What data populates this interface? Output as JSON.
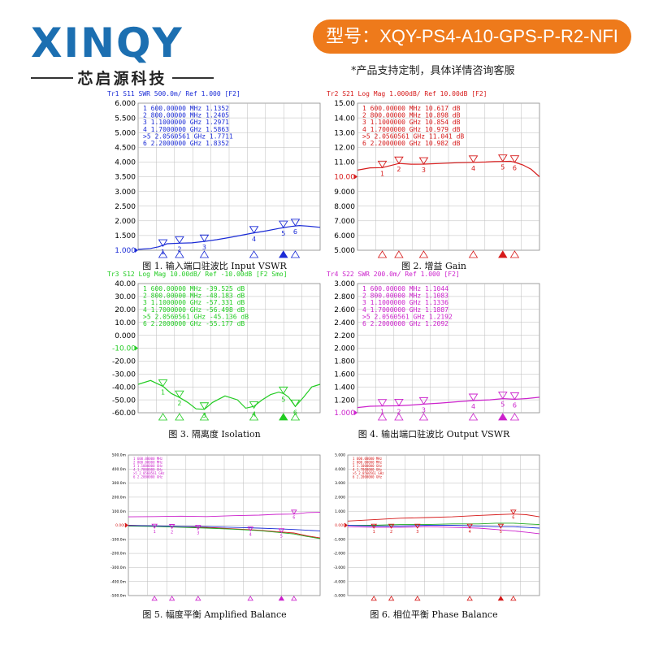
{
  "header": {
    "logo_text": "XINQY",
    "logo_sub": "芯启源科技",
    "model_label": "型号：XQY-PS4-A10-GPS-P-R2-NFI",
    "note": "*产品支持定制，具体详情咨询客服"
  },
  "chart_data": [
    {
      "type": "line",
      "title": "Tr1  S11  SWR 500.0m/ Ref 1.000 [F2]",
      "caption": "图 1. 输入端口驻波比 Input VSWR",
      "color": "#1a2bd6",
      "title_color": "#1a2bd6",
      "ylim": [
        1.0,
        6.0
      ],
      "yticks": [
        "6.000",
        "5.500",
        "5.000",
        "4.500",
        "4.000",
        "3.500",
        "3.000",
        "2.500",
        "2.000",
        "1.500",
        "1.000"
      ],
      "ref_value": 1.0,
      "xlim": [
        0.3,
        2.5
      ],
      "x": [
        0.3,
        0.45,
        0.55,
        0.65,
        0.8,
        0.95,
        1.1,
        1.25,
        1.4,
        1.55,
        1.7,
        1.85,
        2.0,
        2.06,
        2.15,
        2.25,
        2.35,
        2.5
      ],
      "y": [
        1.03,
        1.06,
        1.12,
        1.22,
        1.24,
        1.25,
        1.3,
        1.36,
        1.43,
        1.51,
        1.59,
        1.66,
        1.74,
        1.77,
        1.81,
        1.84,
        1.82,
        1.78
      ],
      "markers": [
        {
          "label": "1",
          "x": 0.6,
          "y": 1.1352
        },
        {
          "label": "2",
          "x": 0.8,
          "y": 1.2405
        },
        {
          "label": "3",
          "x": 1.1,
          "y": 1.2971
        },
        {
          "label": "4",
          "x": 1.7,
          "y": 1.5863
        },
        {
          "label": "5",
          "x": 2.0560561,
          "y": 1.7711
        },
        {
          "label": "6",
          "x": 2.2,
          "y": 1.8352
        }
      ],
      "marker_table": [
        "1   600.00000 MHz   1.1352",
        "2   800.00000 MHz   1.2405",
        "3   1.1000000 GHz   1.2971",
        "4   1.7000000 GHz   1.5863",
        ">5  2.0560561 GHz   1.7711",
        "6   2.2000000 GHz   1.8352"
      ]
    },
    {
      "type": "line",
      "title": "Tr2  S21  Log Mag 1.000dB/ Ref 10.00dB [F2]",
      "caption": "图 2. 增益 Gain",
      "color": "#d61a1a",
      "title_color": "#d61a1a",
      "ylim": [
        5.0,
        15.0
      ],
      "yticks": [
        "15.00",
        "14.00",
        "13.00",
        "12.00",
        "11.00",
        "10.00",
        "9.000",
        "8.000",
        "7.000",
        "6.000",
        "5.000"
      ],
      "ref_value": 10.0,
      "xlim": [
        0.3,
        2.5
      ],
      "x": [
        0.3,
        0.45,
        0.6,
        0.8,
        0.95,
        1.1,
        1.3,
        1.5,
        1.7,
        1.85,
        1.95,
        2.06,
        2.15,
        2.2,
        2.3,
        2.4,
        2.5
      ],
      "y": [
        10.45,
        10.6,
        10.617,
        10.898,
        10.85,
        10.854,
        10.9,
        10.95,
        10.979,
        11.0,
        11.03,
        11.041,
        11.05,
        10.982,
        10.8,
        10.5,
        10.0
      ],
      "markers": [
        {
          "label": "1",
          "x": 0.6,
          "y": 10.617
        },
        {
          "label": "2",
          "x": 0.8,
          "y": 10.898
        },
        {
          "label": "3",
          "x": 1.1,
          "y": 10.854
        },
        {
          "label": "4",
          "x": 1.7,
          "y": 10.979
        },
        {
          "label": "5",
          "x": 2.0560561,
          "y": 11.041
        },
        {
          "label": "6",
          "x": 2.2,
          "y": 10.982
        }
      ],
      "marker_table": [
        "1   600.00000 MHz   10.617 dB",
        "2   800.00000 MHz   10.898 dB",
        "3   1.1000000 GHz   10.854 dB",
        "4   1.7000000 GHz   10.979 dB",
        ">5  2.0560561 GHz   11.041 dB",
        "6   2.2000000 GHz   10.982 dB"
      ]
    },
    {
      "type": "line",
      "title": "Tr3  S12  Log Mag 10.00dB/ Ref -10.00dB [F2 Smo]",
      "caption": "图 3. 隔离度 Isolation",
      "color": "#22cc22",
      "title_color": "#22cc22",
      "ylim": [
        -60.0,
        40.0
      ],
      "yticks": [
        "40.00",
        "30.00",
        "20.00",
        "10.00",
        "0.000",
        "-10.00",
        "-20.00",
        "-30.00",
        "-40.00",
        "-50.00",
        "-60.00"
      ],
      "ref_value": -10.0,
      "xlim": [
        0.3,
        2.5
      ],
      "x": [
        0.3,
        0.45,
        0.6,
        0.7,
        0.8,
        0.9,
        1.0,
        1.1,
        1.2,
        1.35,
        1.5,
        1.6,
        1.7,
        1.8,
        1.9,
        2.0,
        2.06,
        2.12,
        2.2,
        2.3,
        2.4,
        2.5
      ],
      "y": [
        -38,
        -35,
        -39.525,
        -45,
        -48.183,
        -52,
        -57,
        -57.331,
        -52,
        -47,
        -50,
        -56.498,
        -55,
        -50,
        -46,
        -44,
        -45.136,
        -48,
        -55.177,
        -48,
        -40,
        -38
      ],
      "markers": [
        {
          "label": "1",
          "x": 0.6,
          "y": -39.525
        },
        {
          "label": "2",
          "x": 0.8,
          "y": -48.183
        },
        {
          "label": "3",
          "x": 1.1,
          "y": -57.331
        },
        {
          "label": "4",
          "x": 1.7,
          "y": -56.498
        },
        {
          "label": "5",
          "x": 2.0560561,
          "y": -45.136
        },
        {
          "label": "6",
          "x": 2.2,
          "y": -55.177
        }
      ],
      "marker_table": [
        "1   600.00000 MHz   -39.525 dB",
        "2   800.00000 MHz   -48.183 dB",
        "3   1.1000000 GHz   -57.331 dB",
        "4   1.7000000 GHz   -56.498 dB",
        ">5  2.0560561 GHz   -45.136 dB",
        "6   2.2000000 GHz   -55.177 dB"
      ]
    },
    {
      "type": "line",
      "title": "Tr4  S22  SWR 200.0m/ Ref 1.000 [F2]",
      "caption": "图 4. 输出端口驻波比 Output VSWR",
      "color": "#cc22cc",
      "title_color": "#cc22cc",
      "ylim": [
        1.0,
        3.0
      ],
      "yticks": [
        "3.000",
        "2.800",
        "2.600",
        "2.400",
        "2.200",
        "2.000",
        "1.800",
        "1.600",
        "1.400",
        "1.200",
        "1.000"
      ],
      "ref_value": 1.0,
      "xlim": [
        0.3,
        2.5
      ],
      "x": [
        0.3,
        0.45,
        0.6,
        0.8,
        0.95,
        1.1,
        1.3,
        1.5,
        1.7,
        1.9,
        2.06,
        2.2,
        2.35,
        2.5
      ],
      "y": [
        1.08,
        1.1,
        1.1044,
        1.1083,
        1.12,
        1.1336,
        1.15,
        1.17,
        1.1887,
        1.2,
        1.2192,
        1.2092,
        1.22,
        1.24
      ],
      "markers": [
        {
          "label": "1",
          "x": 0.6,
          "y": 1.1044
        },
        {
          "label": "2",
          "x": 0.8,
          "y": 1.1083
        },
        {
          "label": "3",
          "x": 1.1,
          "y": 1.1336
        },
        {
          "label": "4",
          "x": 1.7,
          "y": 1.1887
        },
        {
          "label": "5",
          "x": 2.0560561,
          "y": 1.2192
        },
        {
          "label": "6",
          "x": 2.2,
          "y": 1.2092
        }
      ],
      "marker_table": [
        "1   600.00000 MHz   1.1044",
        "2   800.00000 MHz   1.1083",
        "3   1.1000000 GHz   1.1336",
        "4   1.7000000 GHz   1.1887",
        ">5  2.0560561 GHz   1.2192",
        "6   2.2000000 GHz   1.2092"
      ]
    },
    {
      "type": "line",
      "title": "",
      "caption": "图 5. 幅度平衡 Amplified Balance",
      "title_color": "#d61a1a",
      "ylim": [
        -500,
        500
      ],
      "yticks": [
        "500.0m",
        "400.0m",
        "300.0m",
        "200.0m",
        "100.0m",
        "0.000",
        "-100.0m",
        "-200.0m",
        "-300.0m",
        "-400.0m",
        "-500.0m"
      ],
      "ref_value": 0,
      "xlim": [
        0.3,
        2.5
      ],
      "x": [
        0.3,
        0.6,
        0.9,
        1.2,
        1.5,
        1.8,
        2.0,
        2.2,
        2.35,
        2.5
      ],
      "series": [
        {
          "name": "",
          "color": "#cc22cc",
          "values": [
            60,
            62,
            65,
            62,
            68,
            72,
            78,
            80,
            90,
            92
          ]
        },
        {
          "name": "",
          "color": "#d61a1a",
          "values": [
            0,
            -5,
            -10,
            -15,
            -25,
            -35,
            -45,
            -55,
            -75,
            -90
          ]
        },
        {
          "name": "",
          "color": "#22aa22",
          "values": [
            -5,
            -8,
            -14,
            -20,
            -28,
            -38,
            -50,
            -62,
            -80,
            -95
          ]
        },
        {
          "name": "",
          "color": "#1a2bd6",
          "values": [
            -2,
            -4,
            -8,
            -10,
            -15,
            -20,
            -25,
            -30,
            -35,
            -40
          ]
        }
      ],
      "markers": [
        {
          "label": "1",
          "x": 0.6,
          "y": -20
        },
        {
          "label": "2",
          "x": 0.8,
          "y": -22
        },
        {
          "label": "3",
          "x": 1.1,
          "y": -28
        },
        {
          "label": "4",
          "x": 1.7,
          "y": -40
        },
        {
          "label": "5",
          "x": 2.0560561,
          "y": -52
        },
        {
          "label": "6",
          "x": 2.2,
          "y": 80
        }
      ],
      "marker_table": [
        "1   600.00000 MHz",
        "2   800.00000 MHz",
        "3   1.1000000 GHz",
        "4   1.7000000 GHz",
        ">5  2.0560561 GHz",
        "6   2.2000000 GHz"
      ]
    },
    {
      "type": "line",
      "title": "",
      "caption": "图 6. 相位平衡 Phase Balance",
      "title_color": "#d61a1a",
      "ylim": [
        -5.0,
        5.0
      ],
      "yticks": [
        "5.000",
        "4.000",
        "3.000",
        "2.000",
        "1.000",
        "0.000",
        "-1.000",
        "-2.000",
        "-3.000",
        "-4.000",
        "-5.000"
      ],
      "ref_value": 0,
      "xlim": [
        0.3,
        2.5
      ],
      "x": [
        0.3,
        0.6,
        0.9,
        1.2,
        1.5,
        1.8,
        2.0,
        2.2,
        2.35,
        2.5
      ],
      "series": [
        {
          "name": "",
          "color": "#d61a1a",
          "values": [
            0.3,
            0.4,
            0.5,
            0.55,
            0.6,
            0.7,
            0.75,
            0.8,
            0.75,
            0.6
          ]
        },
        {
          "name": "",
          "color": "#22aa22",
          "values": [
            0,
            0,
            0.05,
            0.05,
            0.1,
            0.1,
            0.15,
            0.15,
            0.1,
            0.05
          ]
        },
        {
          "name": "",
          "color": "#1a2bd6",
          "values": [
            0,
            -0.05,
            -0.05,
            0,
            0,
            -0.05,
            -0.1,
            -0.1,
            -0.15,
            -0.2
          ]
        },
        {
          "name": "",
          "color": "#cc22cc",
          "values": [
            -0.1,
            -0.15,
            -0.15,
            -0.1,
            -0.15,
            -0.2,
            -0.3,
            -0.4,
            -0.5,
            -0.6
          ]
        }
      ],
      "markers": [
        {
          "label": "1",
          "x": 0.6,
          "y": -0.2
        },
        {
          "label": "2",
          "x": 0.8,
          "y": -0.2
        },
        {
          "label": "3",
          "x": 1.1,
          "y": -0.2
        },
        {
          "label": "4",
          "x": 1.7,
          "y": -0.2
        },
        {
          "label": "5",
          "x": 2.0560561,
          "y": -0.2
        },
        {
          "label": "6",
          "x": 2.2,
          "y": 0.8
        }
      ],
      "marker_table": [
        "1   600.00000 MHz",
        "2   800.00000 MHz",
        "3   1.1000000 GHz",
        "4   1.7000000 GHz",
        ">5  2.0560561 GHz",
        "6   2.2000000 GHz"
      ]
    }
  ]
}
